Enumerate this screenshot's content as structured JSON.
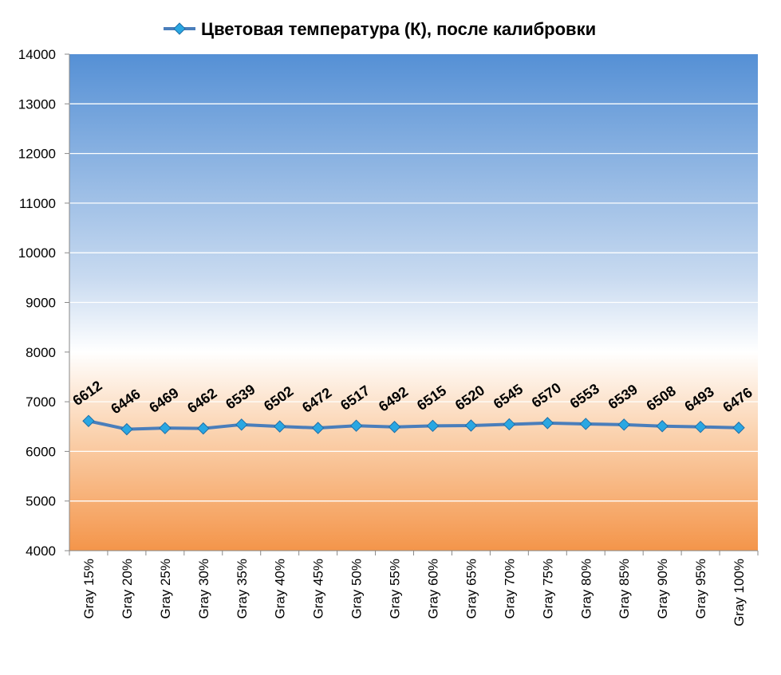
{
  "chart_data": {
    "type": "line",
    "categories": [
      "Gray 15%",
      "Gray 20%",
      "Gray 25%",
      "Gray 30%",
      "Gray 35%",
      "Gray 40%",
      "Gray 45%",
      "Gray 50%",
      "Gray 55%",
      "Gray 60%",
      "Gray 65%",
      "Gray 70%",
      "Gray 75%",
      "Gray 80%",
      "Gray 85%",
      "Gray 90%",
      "Gray 95%",
      "Gray 100%"
    ],
    "series": [
      {
        "name": "Цветовая температура (К), после калибровки",
        "color": "#4a7ebb",
        "marker_color": "#2aa7e2",
        "values": [
          6612,
          6446,
          6469,
          6462,
          6539,
          6502,
          6472,
          6517,
          6492,
          6515,
          6520,
          6545,
          6570,
          6553,
          6539,
          6508,
          6493,
          6476
        ]
      }
    ],
    "ylim": [
      4000,
      14000
    ],
    "yticks": [
      4000,
      5000,
      6000,
      7000,
      8000,
      9000,
      10000,
      11000,
      12000,
      13000,
      14000
    ],
    "grid": true,
    "legend": "top",
    "data_labels": true
  }
}
